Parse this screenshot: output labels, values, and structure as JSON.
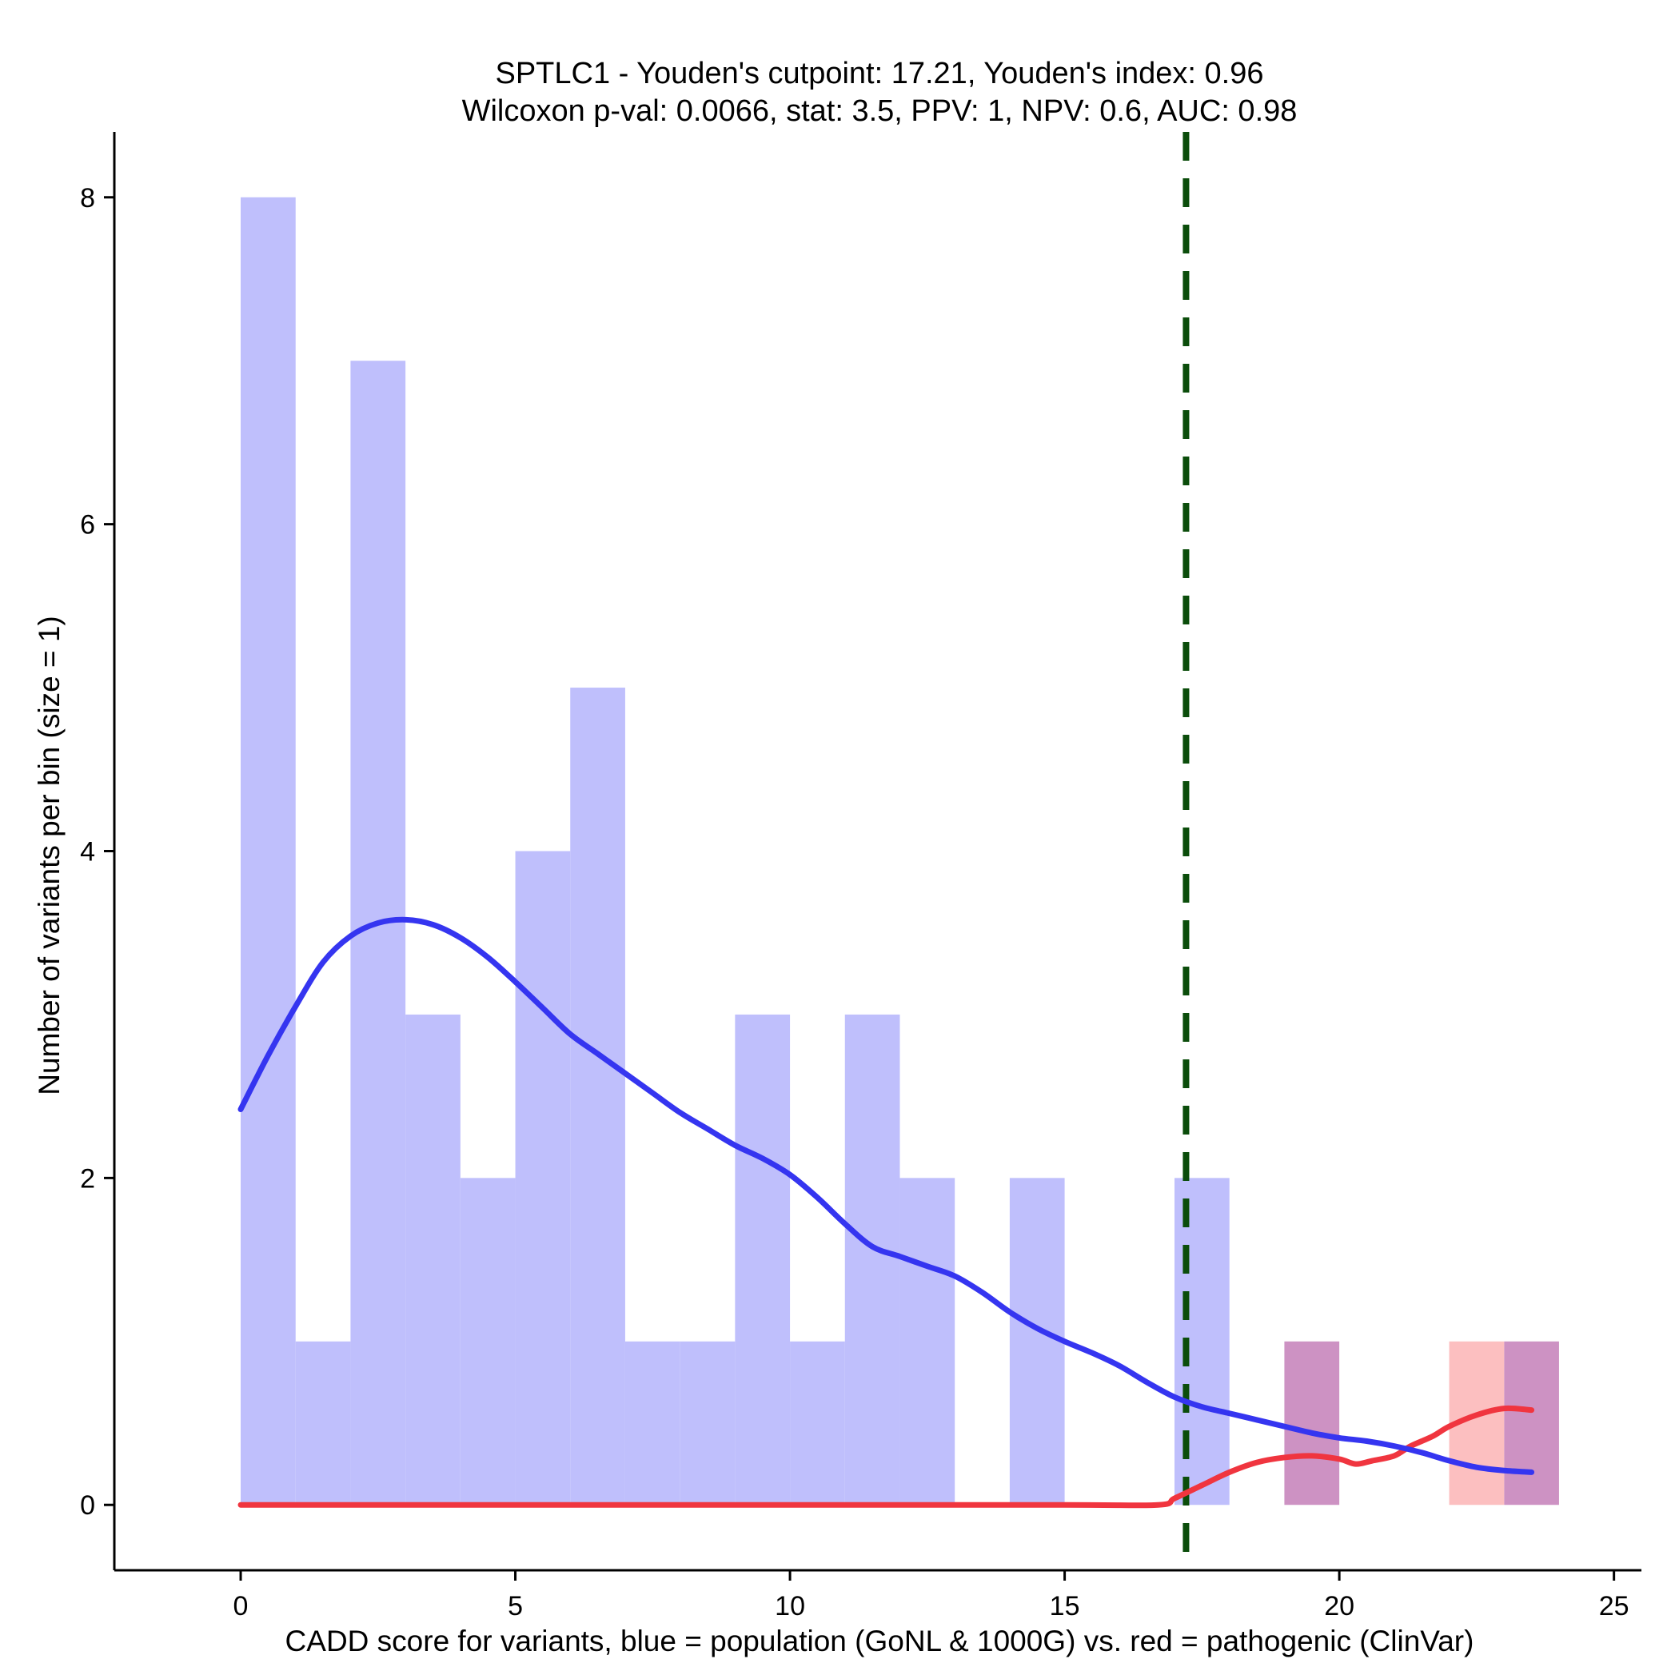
{
  "chart_data": {
    "type": "bar",
    "title_line1": "SPTLC1 - Youden's cutpoint: 17.21, Youden's index: 0.96",
    "title_line2": "Wilcoxon p-val: 0.0066, stat: 3.5, PPV: 1, NPV: 0.6, AUC: 0.98",
    "xlabel": "CADD score for variants, blue = population (GoNL & 1000G) vs. red = pathogenic (ClinVar)",
    "ylabel": "Number of variants per bin (size = 1)",
    "xlim": [
      -2.3,
      25.5
    ],
    "ylim": [
      -0.4,
      8.4
    ],
    "xticks": [
      0,
      5,
      10,
      15,
      20,
      25
    ],
    "yticks": [
      0,
      2,
      4,
      6,
      8
    ],
    "bin_width": 1,
    "colors": {
      "population_bar": "#bfbffc",
      "pathogenic_bar": "#fcbfc0",
      "overlap_bar": "#cd92c3",
      "population_line": "#3535f0",
      "pathogenic_line": "#f0353f",
      "cutpoint_line": "#0b4d0b"
    },
    "cutpoint": 17.21,
    "series": [
      {
        "name": "population",
        "bins": [
          {
            "x": 0,
            "count": 8
          },
          {
            "x": 1,
            "count": 1
          },
          {
            "x": 2,
            "count": 7
          },
          {
            "x": 3,
            "count": 3
          },
          {
            "x": 4,
            "count": 2
          },
          {
            "x": 5,
            "count": 4
          },
          {
            "x": 6,
            "count": 5
          },
          {
            "x": 7,
            "count": 1
          },
          {
            "x": 8,
            "count": 1
          },
          {
            "x": 9,
            "count": 3
          },
          {
            "x": 10,
            "count": 1
          },
          {
            "x": 11,
            "count": 3
          },
          {
            "x": 12,
            "count": 2
          },
          {
            "x": 14,
            "count": 2
          },
          {
            "x": 17,
            "count": 2
          },
          {
            "x": 19,
            "count": 1
          },
          {
            "x": 23,
            "count": 1
          }
        ],
        "density": [
          [
            0.0,
            2.42
          ],
          [
            0.5,
            2.75
          ],
          [
            1.0,
            3.05
          ],
          [
            1.5,
            3.32
          ],
          [
            2.0,
            3.48
          ],
          [
            2.5,
            3.56
          ],
          [
            3.0,
            3.58
          ],
          [
            3.5,
            3.55
          ],
          [
            4.0,
            3.47
          ],
          [
            4.5,
            3.35
          ],
          [
            5.0,
            3.2
          ],
          [
            5.5,
            3.04
          ],
          [
            6.0,
            2.88
          ],
          [
            6.5,
            2.76
          ],
          [
            7.0,
            2.64
          ],
          [
            7.5,
            2.52
          ],
          [
            8.0,
            2.4
          ],
          [
            8.5,
            2.3
          ],
          [
            9.0,
            2.2
          ],
          [
            9.5,
            2.12
          ],
          [
            10.0,
            2.02
          ],
          [
            10.5,
            1.88
          ],
          [
            11.0,
            1.72
          ],
          [
            11.5,
            1.58
          ],
          [
            12.0,
            1.52
          ],
          [
            12.5,
            1.46
          ],
          [
            13.0,
            1.4
          ],
          [
            13.5,
            1.3
          ],
          [
            14.0,
            1.18
          ],
          [
            14.5,
            1.08
          ],
          [
            15.0,
            1.0
          ],
          [
            15.5,
            0.93
          ],
          [
            16.0,
            0.85
          ],
          [
            16.5,
            0.75
          ],
          [
            17.0,
            0.66
          ],
          [
            17.5,
            0.6
          ],
          [
            18.0,
            0.56
          ],
          [
            18.5,
            0.52
          ],
          [
            19.0,
            0.48
          ],
          [
            19.5,
            0.44
          ],
          [
            20.0,
            0.41
          ],
          [
            20.5,
            0.39
          ],
          [
            21.0,
            0.36
          ],
          [
            21.5,
            0.32
          ],
          [
            22.0,
            0.27
          ],
          [
            22.5,
            0.23
          ],
          [
            23.0,
            0.21
          ],
          [
            23.5,
            0.2
          ]
        ]
      },
      {
        "name": "pathogenic",
        "bins": [
          {
            "x": 19,
            "count": 1
          },
          {
            "x": 22,
            "count": 1
          },
          {
            "x": 23,
            "count": 1
          }
        ],
        "density": [
          [
            0.0,
            0.0
          ],
          [
            5.0,
            0.0
          ],
          [
            10.0,
            0.0
          ],
          [
            15.0,
            0.0
          ],
          [
            16.7,
            0.0
          ],
          [
            17.0,
            0.04
          ],
          [
            17.5,
            0.12
          ],
          [
            18.0,
            0.2
          ],
          [
            18.5,
            0.26
          ],
          [
            19.0,
            0.29
          ],
          [
            19.5,
            0.3
          ],
          [
            20.0,
            0.28
          ],
          [
            20.3,
            0.25
          ],
          [
            20.6,
            0.27
          ],
          [
            21.0,
            0.3
          ],
          [
            21.3,
            0.36
          ],
          [
            21.7,
            0.42
          ],
          [
            22.0,
            0.48
          ],
          [
            22.5,
            0.55
          ],
          [
            23.0,
            0.59
          ],
          [
            23.5,
            0.58
          ]
        ]
      }
    ]
  }
}
